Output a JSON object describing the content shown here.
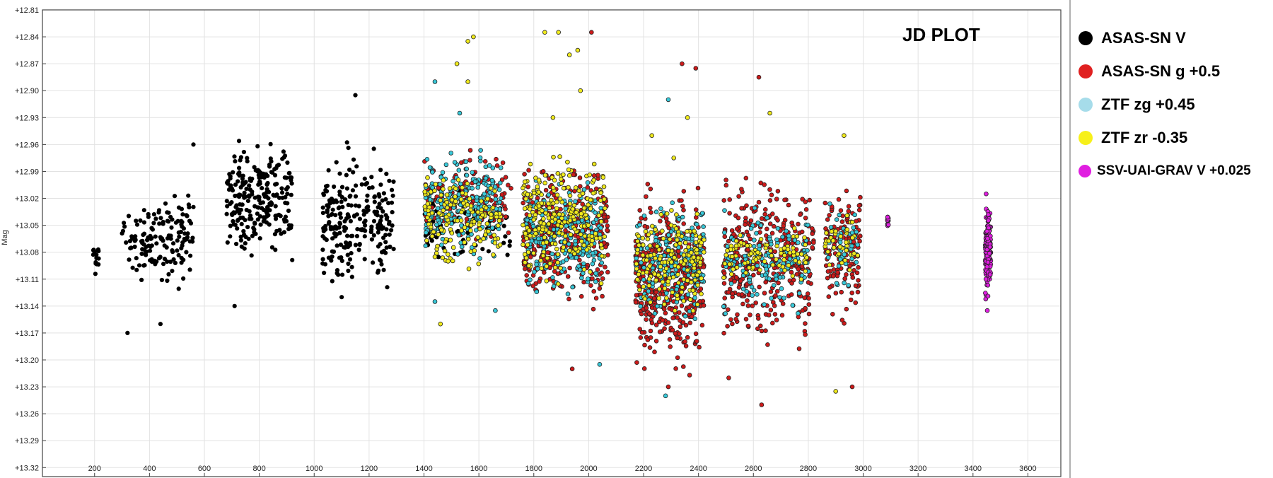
{
  "chart_data": {
    "type": "scatter",
    "title": "JD PLOT",
    "xlabel": "",
    "ylabel": "Mag",
    "xlim": [
      10,
      3720
    ],
    "ylim": [
      12.81,
      13.33
    ],
    "y_inverted": true,
    "grid": true,
    "legend_position": "right-outside",
    "x_ticks": [
      200,
      400,
      600,
      800,
      1000,
      1200,
      1400,
      1600,
      1800,
      2000,
      2200,
      2400,
      2600,
      2800,
      3000,
      3200,
      3400,
      3600
    ],
    "y_ticks": [
      "+12.81",
      "+12.84",
      "+12.87",
      "+12.90",
      "+12.93",
      "+12.96",
      "+12.99",
      "+13.02",
      "+13.05",
      "+13.08",
      "+13.11",
      "+13.14",
      "+13.17",
      "+13.20",
      "+13.23",
      "+13.26",
      "+13.29",
      "+13.32"
    ],
    "y_tick_values": [
      12.81,
      12.84,
      12.87,
      12.9,
      12.93,
      12.96,
      12.99,
      13.02,
      13.05,
      13.08,
      13.11,
      13.14,
      13.17,
      13.2,
      13.23,
      13.26,
      13.29,
      13.32
    ],
    "series": [
      {
        "name": "ASAS-SN V",
        "color": "#000000",
        "clusters": [
          {
            "x": [
              195,
              215
            ],
            "y": [
              13.05,
              13.12
            ],
            "n": 14
          },
          {
            "x": [
              300,
              560
            ],
            "y": [
              13.0,
              13.13
            ],
            "n": 150
          },
          {
            "x": [
              680,
              920
            ],
            "y": [
              12.94,
              13.1
            ],
            "n": 240
          },
          {
            "x": [
              1030,
              1290
            ],
            "y": [
              12.95,
              13.14
            ],
            "n": 240
          },
          {
            "x": [
              1400,
              1720
            ],
            "y": [
              13.0,
              13.11
            ],
            "n": 70
          }
        ],
        "outliers": [
          [
            320,
            13.17
          ],
          [
            440,
            13.16
          ],
          [
            560,
            12.96
          ],
          [
            710,
            13.14
          ],
          [
            1150,
            12.905
          ],
          [
            1100,
            13.13
          ]
        ]
      },
      {
        "name": "ASAS-SN g +0.5",
        "color": "#cc1a1a",
        "clusters": [
          {
            "x": [
              1400,
              1720
            ],
            "y": [
              12.96,
              13.08
            ],
            "n": 110
          },
          {
            "x": [
              1760,
              2070
            ],
            "y": [
              12.96,
              13.16
            ],
            "n": 320
          },
          {
            "x": [
              2170,
              2420
            ],
            "y": [
              12.99,
              13.23
            ],
            "n": 430
          },
          {
            "x": [
              2490,
              2820
            ],
            "y": [
              12.98,
              13.2
            ],
            "n": 360
          },
          {
            "x": [
              2860,
              2990
            ],
            "y": [
              12.98,
              13.17
            ],
            "n": 130
          }
        ],
        "outliers": [
          [
            2010,
            12.835
          ],
          [
            2340,
            12.87
          ],
          [
            2390,
            12.875
          ],
          [
            2620,
            12.885
          ],
          [
            2630,
            13.25
          ],
          [
            2960,
            13.23
          ],
          [
            1940,
            13.21
          ],
          [
            2290,
            13.23
          ],
          [
            2510,
            13.22
          ]
        ]
      },
      {
        "name": "ZTF zg +0.45",
        "color": "#38c8d8",
        "clusters": [
          {
            "x": [
              1400,
              1680
            ],
            "y": [
              12.95,
              13.1
            ],
            "n": 220
          },
          {
            "x": [
              1770,
              2050
            ],
            "y": [
              12.99,
              13.14
            ],
            "n": 220
          },
          {
            "x": [
              2170,
              2420
            ],
            "y": [
              13.01,
              13.17
            ],
            "n": 190
          },
          {
            "x": [
              2490,
              2800
            ],
            "y": [
              13.02,
              13.16
            ],
            "n": 130
          },
          {
            "x": [
              2860,
              2980
            ],
            "y": [
              13.02,
              13.13
            ],
            "n": 45
          }
        ],
        "outliers": [
          [
            1440,
            12.89
          ],
          [
            1530,
            12.925
          ],
          [
            1660,
            13.145
          ],
          [
            2040,
            13.205
          ],
          [
            2280,
            13.24
          ],
          [
            2290,
            12.91
          ],
          [
            1440,
            13.135
          ]
        ]
      },
      {
        "name": "ZTF zr -0.35",
        "color": "#f0ea1c",
        "clusters": [
          {
            "x": [
              1400,
              1680
            ],
            "y": [
              12.98,
              13.11
            ],
            "n": 160
          },
          {
            "x": [
              1760,
              2060
            ],
            "y": [
              12.96,
              13.13
            ],
            "n": 260
          },
          {
            "x": [
              2170,
              2420
            ],
            "y": [
              13.02,
              13.16
            ],
            "n": 170
          },
          {
            "x": [
              2490,
              2800
            ],
            "y": [
              13.04,
              13.12
            ],
            "n": 90
          },
          {
            "x": [
              2860,
              2980
            ],
            "y": [
              13.03,
              13.11
            ],
            "n": 40
          }
        ],
        "outliers": [
          [
            1560,
            12.845
          ],
          [
            1580,
            12.84
          ],
          [
            1520,
            12.87
          ],
          [
            1560,
            12.89
          ],
          [
            1840,
            12.835
          ],
          [
            1890,
            12.835
          ],
          [
            1930,
            12.86
          ],
          [
            1960,
            12.855
          ],
          [
            1970,
            12.9
          ],
          [
            1870,
            12.93
          ],
          [
            2230,
            12.95
          ],
          [
            2310,
            12.975
          ],
          [
            2360,
            12.93
          ],
          [
            2660,
            12.925
          ],
          [
            2930,
            12.95
          ],
          [
            2900,
            13.235
          ],
          [
            1460,
            13.16
          ]
        ]
      },
      {
        "name": "SSV-UAI-GRAV V +0.025",
        "color": "#e01ee0",
        "clusters": [
          {
            "x": [
              3088,
              3092
            ],
            "y": [
              13.035,
              13.055
            ],
            "n": 14
          },
          {
            "x": [
              3445,
              3465
            ],
            "y": [
              13.02,
              13.14
            ],
            "n": 180
          }
        ],
        "outliers": [
          [
            3452,
            13.145
          ],
          [
            3448,
            13.015
          ]
        ]
      }
    ]
  }
}
